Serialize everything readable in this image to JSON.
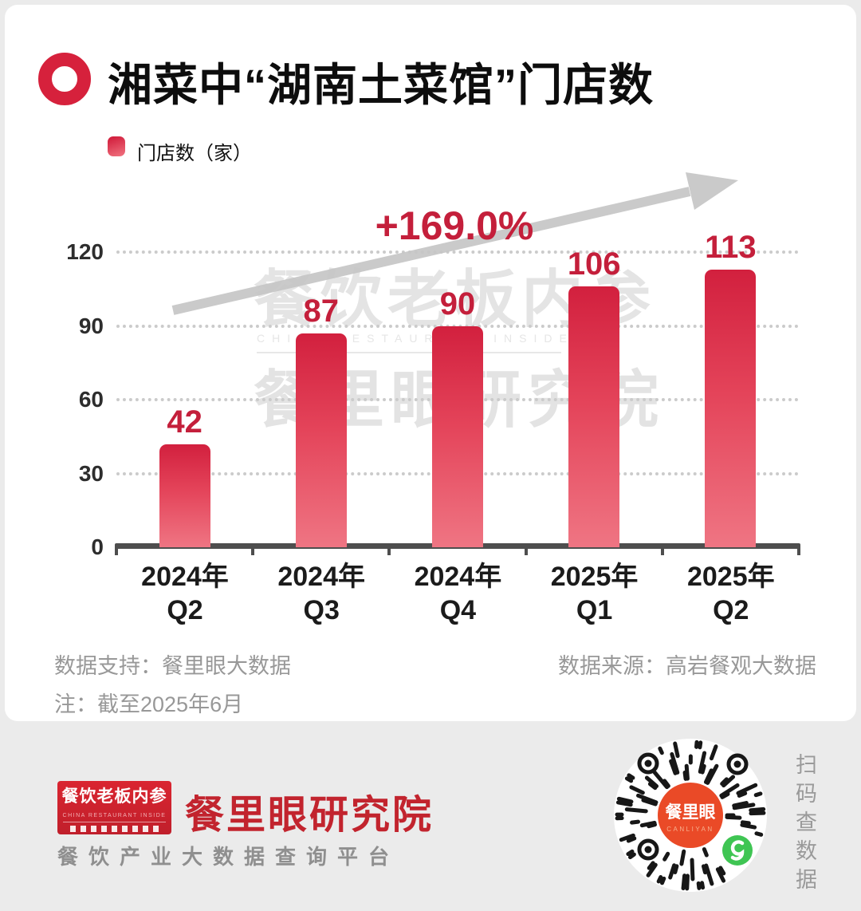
{
  "header": {
    "title": "湘菜中“湖南土菜馆”门店数"
  },
  "legend": {
    "label": "门店数（家）"
  },
  "chart_data": {
    "type": "bar",
    "title": "湘菜中“湖南土菜馆”门店数",
    "series_label": "门店数（家）",
    "categories": [
      {
        "year": "2024年",
        "quarter": "Q2"
      },
      {
        "year": "2024年",
        "quarter": "Q3"
      },
      {
        "year": "2024年",
        "quarter": "Q4"
      },
      {
        "year": "2025年",
        "quarter": "Q1"
      },
      {
        "year": "2025年",
        "quarter": "Q2"
      }
    ],
    "values": [
      42,
      87,
      90,
      106,
      113
    ],
    "annotation": "+169.0%",
    "yticks": [
      0,
      30,
      60,
      90,
      120
    ],
    "ylim": [
      0,
      124
    ],
    "grid": "horizontal-dotted",
    "legend_position": "top-left",
    "bar_color_top": "#d2203e",
    "bar_color_bottom": "#ef7583"
  },
  "watermark": {
    "line1": "餐饮老板内参",
    "line2": "CHINA RESTAURANT INSIDE",
    "line3": "餐里眼研究院"
  },
  "notes": {
    "support": "数据支持：餐里眼大数据",
    "source": "数据来源：高岩餐观大数据",
    "note": "注：截至2025年6月"
  },
  "footer": {
    "badge": {
      "line1": "餐饮老板内参",
      "line2": "CHINA RESTAURANT INSIDE"
    },
    "brand": "餐里眼研究院",
    "tagline": "餐饮产业大数据查询平台",
    "qr": {
      "center_line1": "餐里眼",
      "center_line2": "CANLIYAN",
      "side_text": "扫码查数据"
    }
  },
  "colors": {
    "accent_red": "#c41f3b",
    "title_black": "#0d0d0d",
    "arrow_gray": "#c6c6c6",
    "brand_red": "#c2242e",
    "qr_orange": "#ea4a27",
    "mini_program_green": "#3fc553",
    "footer_band": "#ebebeb"
  }
}
